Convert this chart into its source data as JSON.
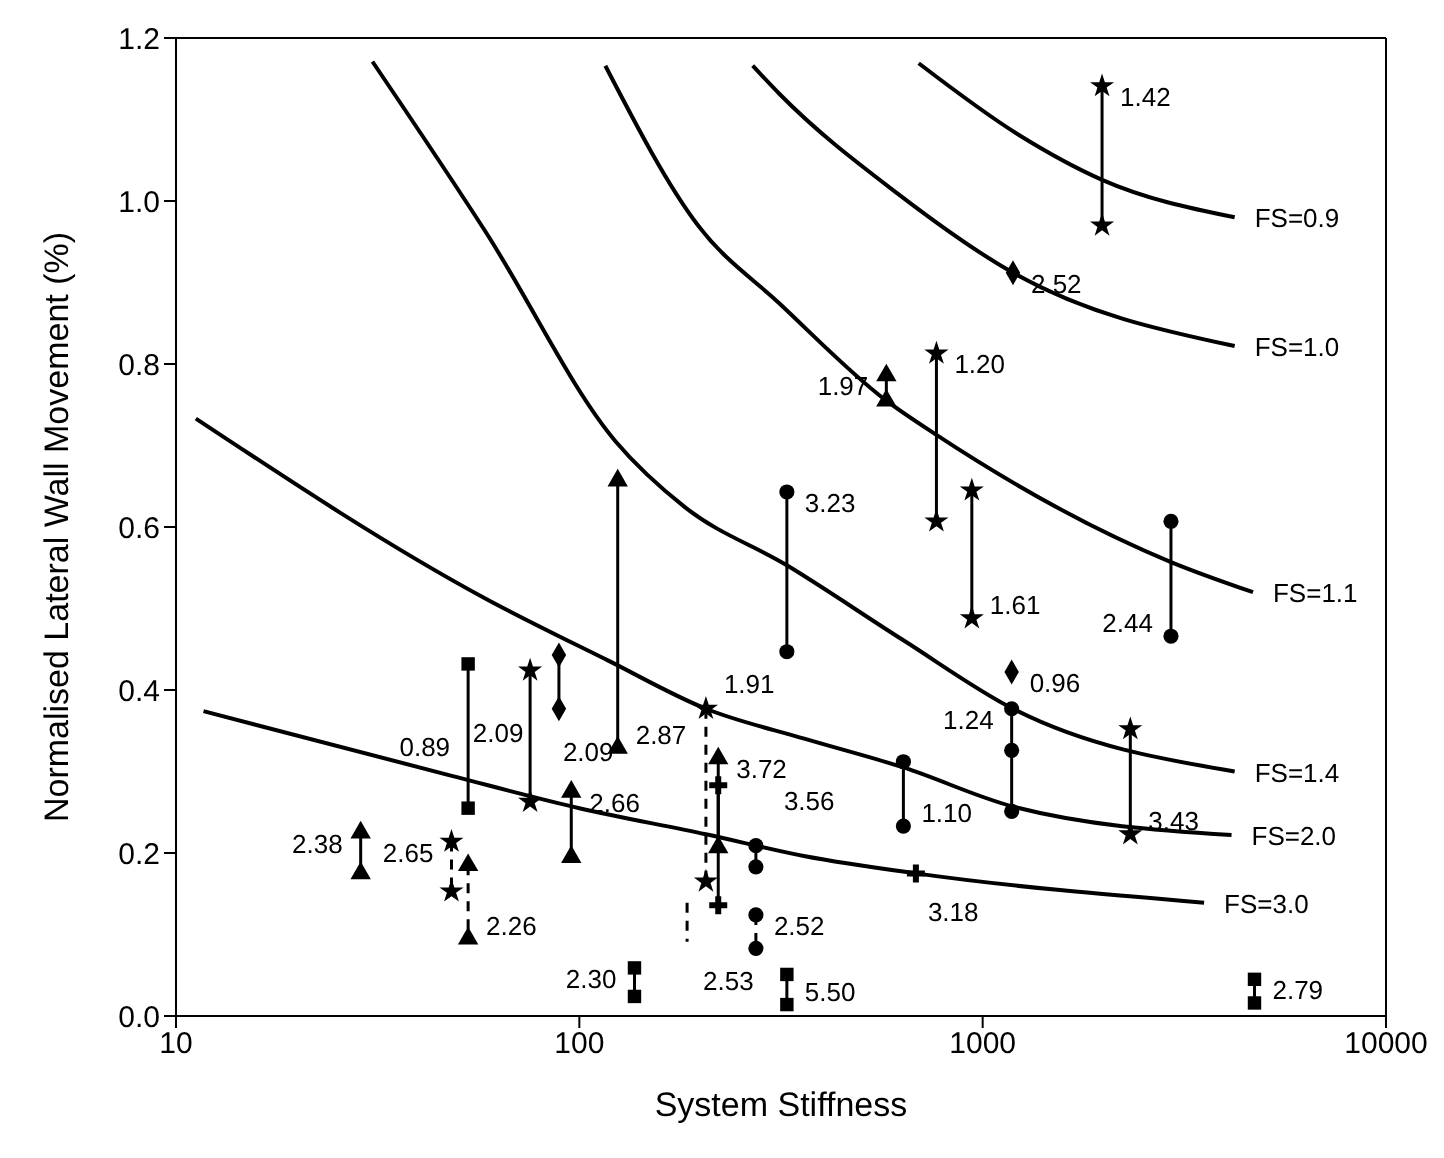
{
  "chart_data": {
    "type": "line",
    "xlabel": "System Stiffness",
    "ylabel": "Normalised Lateral Wall Movement (%)",
    "log": "x",
    "xlim": [
      10,
      10000
    ],
    "xticks": [
      10,
      100,
      1000,
      10000
    ],
    "ylim": [
      0,
      1.2
    ],
    "yticks": [
      {
        "value": 0,
        "label": "0.0"
      },
      {
        "value": 0.2,
        "label": "0.2"
      },
      {
        "value": 0.4,
        "label": "0.4"
      },
      {
        "value": 0.6,
        "label": "0.6"
      },
      {
        "value": 0.8,
        "label": "0.8"
      },
      {
        "value": 1,
        "label": "1.0"
      },
      {
        "value": 1.2,
        "label": "1.2"
      }
    ],
    "series": [
      {
        "name": "FS=0.9",
        "type": "line",
        "color": "#000000",
        "x": [
          694,
          1230,
          1977,
          4215
        ],
        "values": [
          1.169,
          1.081,
          1.026,
          0.98
        ]
      },
      {
        "name": "FS=1.0",
        "type": "line",
        "color": "#000000",
        "x": [
          269,
          314,
          612,
          1189,
          4215
        ],
        "values": [
          1.166,
          1.131,
          1.01,
          0.912,
          0.822
        ]
      },
      {
        "name": "FS=1.1",
        "type": "line",
        "color": "#000000",
        "x": [
          116,
          197,
          314,
          577,
          768,
          2930,
          4680
        ],
        "values": [
          1.166,
          0.97,
          0.874,
          0.755,
          0.713,
          0.557,
          0.52
        ]
      },
      {
        "name": "FS=1.4",
        "type": "line",
        "color": "#000000",
        "x": [
          30.7,
          58.6,
          123,
          182,
          327,
          636,
          1189,
          4215
        ],
        "values": [
          1.171,
          0.962,
          0.705,
          0.625,
          0.553,
          0.461,
          0.377,
          0.3
        ]
      },
      {
        "name": "FS=2.0",
        "type": "line",
        "color": "#000000",
        "x": [
          11.2,
          58.6,
          118,
          206,
          363,
          636,
          1189,
          4140
        ],
        "values": [
          0.733,
          0.512,
          0.436,
          0.377,
          0.34,
          0.305,
          0.257,
          0.222
        ]
      },
      {
        "name": "FS=3.0",
        "type": "line",
        "color": "#000000",
        "x": [
          11.7,
          48,
          100,
          206,
          363,
          683,
          3540
        ],
        "values": [
          0.374,
          0.295,
          0.255,
          0.223,
          0.196,
          0.175,
          0.139
        ]
      },
      {
        "marker": "star",
        "color": "#000000",
        "x": [
          1977,
          1977
        ],
        "values": [
          1.141,
          0.97
        ]
      },
      {
        "marker": "diamond",
        "color": "#000000",
        "x": [
          1189
        ],
        "values": [
          0.912
        ]
      },
      {
        "marker": "triangle",
        "color": "#000000",
        "x": [
          577,
          577
        ],
        "values": [
          0.786,
          0.755
        ]
      },
      {
        "marker": "star",
        "color": "#000000",
        "x": [
          768,
          768
        ],
        "values": [
          0.813,
          0.607
        ]
      },
      {
        "marker": "star",
        "color": "#000000",
        "x": [
          940,
          940
        ],
        "values": [
          0.645,
          0.488
        ]
      },
      {
        "marker": "circle",
        "color": "#000000",
        "x": [
          2930,
          2930
        ],
        "values": [
          0.607,
          0.466
        ]
      },
      {
        "marker": "circle",
        "color": "#000000",
        "x": [
          327,
          327
        ],
        "values": [
          0.643,
          0.447
        ]
      },
      {
        "marker": "triangle",
        "color": "#000000",
        "x": [
          124.5,
          124.5
        ],
        "values": [
          0.657,
          0.329
        ]
      },
      {
        "marker": "diamond",
        "color": "#000000",
        "x": [
          1180
        ],
        "values": [
          0.422
        ]
      },
      {
        "marker": "circle",
        "color": "#000000",
        "x": [
          1180,
          1180,
          1180
        ],
        "values": [
          0.377,
          0.326,
          0.251
        ]
      },
      {
        "marker": "star",
        "color": "#000000",
        "x": [
          2323,
          2323
        ],
        "values": [
          0.352,
          0.223
        ]
      },
      {
        "marker": "circle",
        "color": "#000000",
        "x": [
          636,
          636
        ],
        "values": [
          0.312,
          0.233
        ]
      },
      {
        "marker": "cross",
        "color": "#000000",
        "x": [
          683
        ],
        "values": [
          0.175
        ]
      },
      {
        "marker": "star",
        "color": "#000000",
        "line_style": "dashed",
        "x": [
          206,
          206
        ],
        "values": [
          0.377,
          0.165
        ]
      },
      {
        "marker": "triangle",
        "color": "#000000",
        "x": [
          221,
          221
        ],
        "values": [
          0.316,
          0.207
        ]
      },
      {
        "marker": "cross",
        "color": "#000000",
        "x": [
          221,
          221
        ],
        "values": [
          0.283,
          0.136
        ]
      },
      {
        "marker": "square",
        "color": "#000000",
        "x": [
          137,
          137
        ],
        "values": [
          0.059,
          0.024
        ]
      },
      {
        "marker": "square",
        "color": "#000000",
        "x": [
          327,
          327
        ],
        "values": [
          0.051,
          0.014
        ]
      },
      {
        "marker": "square",
        "color": "#000000",
        "x": [
          4720,
          4720
        ],
        "values": [
          0.045,
          0.016
        ]
      },
      {
        "marker": "circle",
        "color": "#000000",
        "x": [
          274,
          274
        ],
        "values": [
          0.209,
          0.183
        ]
      },
      {
        "marker": "circle",
        "color": "#000000",
        "line_style": "dashed",
        "x": [
          274,
          274
        ],
        "values": [
          0.124,
          0.083
        ]
      },
      {
        "marker": "diamond",
        "color": "#000000",
        "x": [
          89,
          89
        ],
        "values": [
          0.443,
          0.377
        ]
      },
      {
        "marker": "star",
        "color": "#000000",
        "x": [
          75.5,
          75.5
        ],
        "values": [
          0.424,
          0.263
        ]
      },
      {
        "marker": "square",
        "color": "#000000",
        "x": [
          53,
          53
        ],
        "values": [
          0.432,
          0.255
        ]
      },
      {
        "marker": "triangle",
        "color": "#000000",
        "x": [
          95.5,
          95.5
        ],
        "values": [
          0.275,
          0.195
        ]
      },
      {
        "marker": "triangle",
        "color": "#000000",
        "x": [
          28.7,
          28.7
        ],
        "values": [
          0.225,
          0.175
        ]
      },
      {
        "marker": "star",
        "color": "#000000",
        "line_style": "dashed",
        "x": [
          48.2,
          48.2
        ],
        "values": [
          0.214,
          0.153
        ]
      },
      {
        "marker": "triangle",
        "color": "#000000",
        "line_style": "dashed",
        "x": [
          53,
          53
        ],
        "values": [
          0.185,
          0.095
        ]
      },
      {
        "type": "line",
        "marker": "none",
        "color": "#000000",
        "line_style": "dashed",
        "x": [
          185,
          185
        ],
        "values": [
          0.139,
          0.091
        ]
      }
    ],
    "annotations": [
      {
        "text": "1.42",
        "x": 1977,
        "y": 1.141
      },
      {
        "text": "2.52",
        "x": 1189,
        "y": 0.912
      },
      {
        "text": "1.97",
        "x": 577,
        "y": 0.786
      },
      {
        "text": "1.20",
        "x": 768,
        "y": 0.813
      },
      {
        "text": "1.61",
        "x": 940,
        "y": 0.488
      },
      {
        "text": "2.44",
        "x": 2930,
        "y": 0.466
      },
      {
        "text": "3.23",
        "x": 327,
        "y": 0.643
      },
      {
        "text": "2.87",
        "x": 124.5,
        "y": 0.329
      },
      {
        "text": "0.96",
        "x": 1180,
        "y": 0.422
      },
      {
        "text": "1.24",
        "x": 1180,
        "y": 0.377
      },
      {
        "text": "3.43",
        "x": 2323,
        "y": 0.223
      },
      {
        "text": "1.10",
        "x": 636,
        "y": 0.233
      },
      {
        "text": "3.18",
        "x": 683,
        "y": 0.175
      },
      {
        "text": "1.91",
        "x": 206,
        "y": 0.377
      },
      {
        "text": "3.72",
        "x": 221,
        "y": 0.316
      },
      {
        "text": "2.30",
        "x": 137,
        "y": 0.059
      },
      {
        "text": "5.50",
        "x": 327,
        "y": 0.014
      },
      {
        "text": "2.79",
        "x": 4720,
        "y": 0.045
      },
      {
        "text": "3.56",
        "x": 274,
        "y": 0.209
      },
      {
        "text": "2.52",
        "x": 274,
        "y": 0.124
      },
      {
        "text": "2.09",
        "x": 89,
        "y": 0.377
      },
      {
        "text": "2.09",
        "x": 75.5,
        "y": 0.263
      },
      {
        "text": "0.89",
        "x": 53,
        "y": 0.255
      },
      {
        "text": "2.66",
        "x": 95.5,
        "y": 0.275
      },
      {
        "text": "2.38",
        "x": 28.7,
        "y": 0.225
      },
      {
        "text": "2.65",
        "x": 48.2,
        "y": 0.214
      },
      {
        "text": "2.26",
        "x": 53,
        "y": 0.095
      },
      {
        "text": "2.53",
        "x": 185,
        "y": 0.091
      }
    ]
  }
}
